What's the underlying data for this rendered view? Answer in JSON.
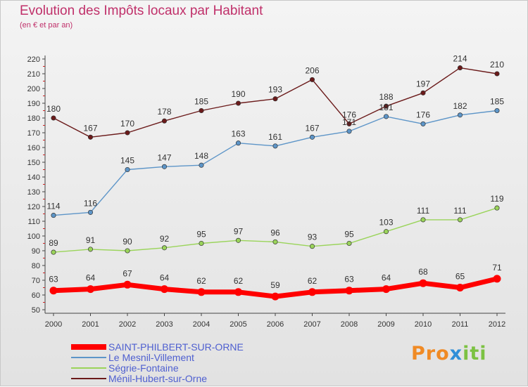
{
  "title": "Evolution des Impôts locaux par Habitant",
  "subtitle": "(en € et par an)",
  "logo": {
    "text": "Proxiti"
  },
  "chart_data": {
    "type": "line",
    "title": "Evolution des Impôts locaux par Habitant",
    "subtitle": "(en € et par an)",
    "x": [
      "2000",
      "2001",
      "2002",
      "2003",
      "2004",
      "2005",
      "2006",
      "2007",
      "2008",
      "2009",
      "2010",
      "2011",
      "2012"
    ],
    "ylim": [
      50,
      220
    ],
    "yticks": [
      50,
      60,
      70,
      80,
      90,
      100,
      110,
      120,
      130,
      140,
      150,
      160,
      170,
      180,
      190,
      200,
      210,
      220
    ],
    "grid": false,
    "legend_position": "bottom-left",
    "series": [
      {
        "name": "SAINT-PHILBERT-SUR-ORNE",
        "color": "#ff0000",
        "values": [
          63,
          64,
          67,
          64,
          62,
          62,
          59,
          62,
          63,
          64,
          68,
          65,
          71
        ]
      },
      {
        "name": "Le Mesnil-Villement",
        "color": "#5d95c8",
        "values": [
          114,
          116,
          145,
          147,
          148,
          163,
          161,
          167,
          171,
          181,
          176,
          182,
          185
        ]
      },
      {
        "name": "Ségrie-Fontaine",
        "color": "#9ad45a",
        "values": [
          89,
          91,
          90,
          92,
          95,
          97,
          96,
          93,
          95,
          103,
          111,
          111,
          119
        ]
      },
      {
        "name": "Ménil-Hubert-sur-Orne",
        "color": "#6b1a1a",
        "values": [
          180,
          167,
          170,
          178,
          185,
          190,
          193,
          206,
          176,
          188,
          197,
          214,
          210
        ]
      }
    ]
  }
}
